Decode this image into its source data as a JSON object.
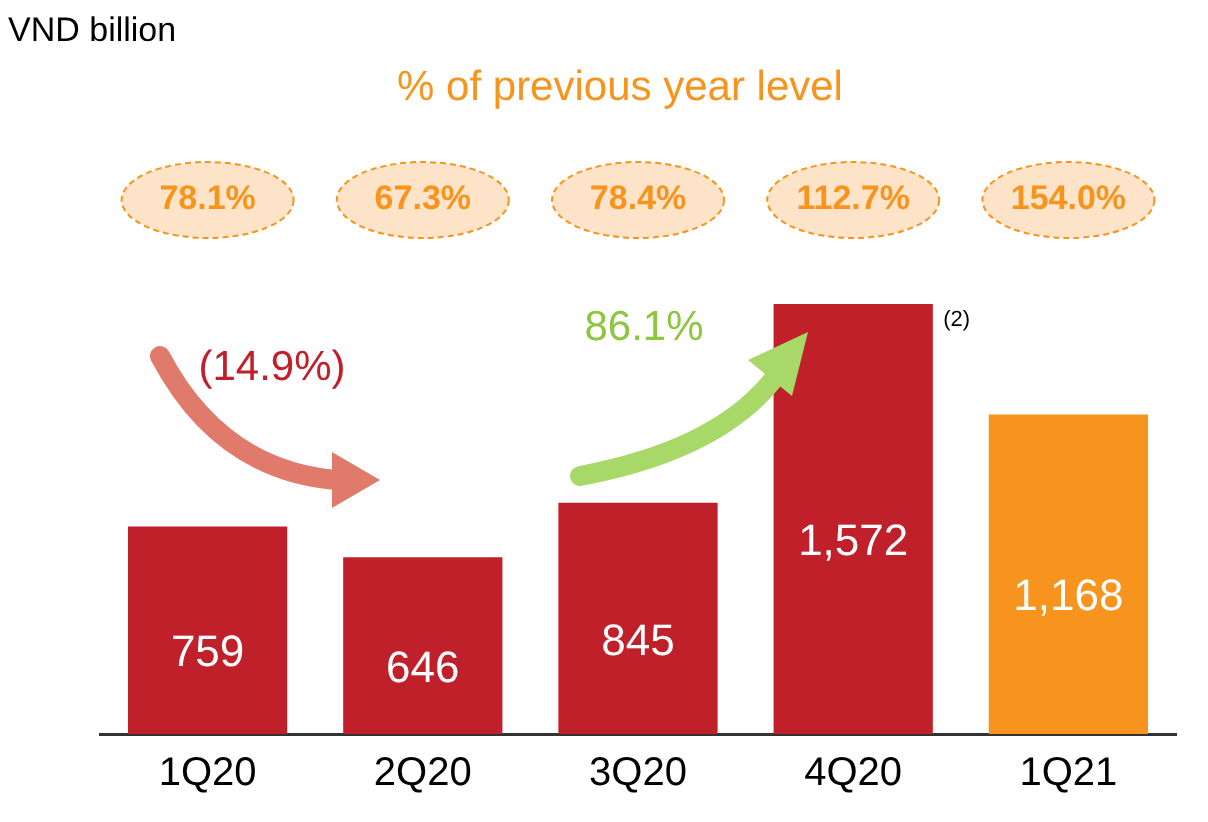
{
  "chart_data": {
    "type": "bar",
    "subtitle": "% of previous year level",
    "categories": [
      "1Q20",
      "2Q20",
      "3Q20",
      "4Q20",
      "1Q21"
    ],
    "values": [
      759,
      646,
      845,
      1572,
      1168
    ],
    "value_labels": [
      "759",
      "646",
      "845",
      "1,572",
      "1,168"
    ],
    "colors": [
      "#c0202a",
      "#c0202a",
      "#c0202a",
      "#c0202a",
      "#f7941d"
    ],
    "grid": false,
    "legend": false,
    "tick_labels": "x",
    "annotations": [
      "VND billion",
      "78.1%",
      "67.3%",
      "78.4%",
      "112.7%",
      "154.0%",
      "(14.9%)",
      "86.1%",
      "(2)"
    ]
  }
}
